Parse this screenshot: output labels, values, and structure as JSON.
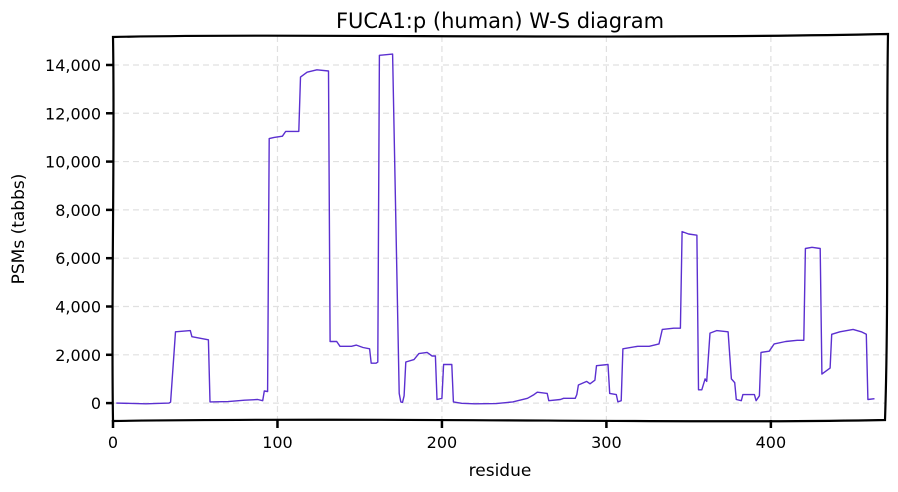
{
  "chart_data": {
    "type": "line",
    "title": "FUCA1:p (human) W-S diagram",
    "xlabel": "residue",
    "ylabel": "PSMs (tabbs)",
    "xlim": [
      0,
      470
    ],
    "ylim": [
      -700,
      15200
    ],
    "x_ticks": [
      0,
      100,
      200,
      300,
      400
    ],
    "x_tick_labels": [
      "0",
      "100",
      "200",
      "300",
      "400"
    ],
    "y_ticks": [
      0,
      2000,
      4000,
      6000,
      8000,
      10000,
      12000,
      14000
    ],
    "y_tick_labels": [
      "0",
      "2,000",
      "4,000",
      "6,000",
      "8,000",
      "10,000",
      "12,000",
      "14,000"
    ],
    "grid": true,
    "series": [
      {
        "color": "#5b2fd0",
        "points": [
          [
            2,
            0
          ],
          [
            20,
            -30
          ],
          [
            34,
            0
          ],
          [
            35,
            40
          ],
          [
            38,
            2950
          ],
          [
            47,
            3000
          ],
          [
            48,
            2750
          ],
          [
            52,
            2700
          ],
          [
            58,
            2620
          ],
          [
            59,
            50
          ],
          [
            70,
            60
          ],
          [
            80,
            120
          ],
          [
            88,
            150
          ],
          [
            91,
            100
          ],
          [
            92,
            500
          ],
          [
            94,
            480
          ],
          [
            95,
            10950
          ],
          [
            98,
            11000
          ],
          [
            103,
            11050
          ],
          [
            105,
            11250
          ],
          [
            113,
            11250
          ],
          [
            114,
            13500
          ],
          [
            118,
            13700
          ],
          [
            124,
            13800
          ],
          [
            131,
            13750
          ],
          [
            132,
            2550
          ],
          [
            136,
            2550
          ],
          [
            138,
            2350
          ],
          [
            145,
            2350
          ],
          [
            148,
            2400
          ],
          [
            152,
            2300
          ],
          [
            156,
            2250
          ],
          [
            157,
            1650
          ],
          [
            160,
            1650
          ],
          [
            161,
            1700
          ],
          [
            162,
            14400
          ],
          [
            170,
            14450
          ],
          [
            174,
            400
          ],
          [
            175,
            50
          ],
          [
            176,
            30
          ],
          [
            177,
            300
          ],
          [
            178,
            1700
          ],
          [
            183,
            1800
          ],
          [
            186,
            2050
          ],
          [
            191,
            2100
          ],
          [
            194,
            1950
          ],
          [
            196,
            1950
          ],
          [
            197,
            150
          ],
          [
            200,
            200
          ],
          [
            201,
            1600
          ],
          [
            206,
            1600
          ],
          [
            207,
            50
          ],
          [
            212,
            -10
          ],
          [
            220,
            -30
          ],
          [
            233,
            -20
          ],
          [
            243,
            50
          ],
          [
            252,
            200
          ],
          [
            256,
            350
          ],
          [
            258,
            450
          ],
          [
            264,
            400
          ],
          [
            265,
            100
          ],
          [
            272,
            150
          ],
          [
            274,
            200
          ],
          [
            281,
            200
          ],
          [
            282,
            350
          ],
          [
            283,
            750
          ],
          [
            288,
            900
          ],
          [
            290,
            800
          ],
          [
            293,
            950
          ],
          [
            294,
            1550
          ],
          [
            301,
            1600
          ],
          [
            302,
            400
          ],
          [
            306,
            350
          ],
          [
            307,
            50
          ],
          [
            309,
            100
          ],
          [
            310,
            2250
          ],
          [
            319,
            2350
          ],
          [
            326,
            2350
          ],
          [
            332,
            2450
          ],
          [
            334,
            3050
          ],
          [
            341,
            3100
          ],
          [
            345,
            3100
          ],
          [
            346,
            7100
          ],
          [
            350,
            7000
          ],
          [
            355,
            6950
          ],
          [
            356,
            550
          ],
          [
            358,
            550
          ],
          [
            360,
            1000
          ],
          [
            361,
            900
          ],
          [
            363,
            2900
          ],
          [
            367,
            3000
          ],
          [
            374,
            2950
          ],
          [
            376,
            1000
          ],
          [
            378,
            850
          ],
          [
            379,
            150
          ],
          [
            382,
            100
          ],
          [
            383,
            350
          ],
          [
            390,
            350
          ],
          [
            391,
            100
          ],
          [
            393,
            300
          ],
          [
            394,
            2100
          ],
          [
            399,
            2150
          ],
          [
            402,
            2450
          ],
          [
            409,
            2550
          ],
          [
            416,
            2600
          ],
          [
            420,
            2600
          ],
          [
            421,
            6400
          ],
          [
            425,
            6450
          ],
          [
            430,
            6400
          ],
          [
            431,
            1200
          ],
          [
            433,
            1300
          ],
          [
            436,
            1450
          ],
          [
            437,
            2850
          ],
          [
            442,
            2950
          ],
          [
            450,
            3050
          ],
          [
            455,
            2950
          ],
          [
            458,
            2850
          ],
          [
            459,
            150
          ],
          [
            463,
            180
          ]
        ]
      }
    ]
  }
}
